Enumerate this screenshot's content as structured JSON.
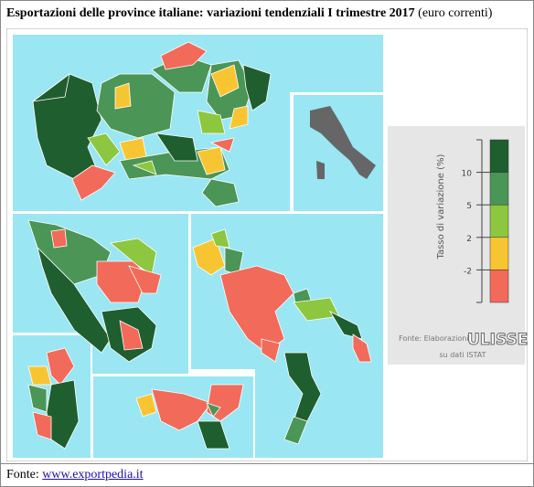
{
  "header": {
    "title": "Esportazioni delle province italiane: variazioni tendenziali I trimestre 2017",
    "subtitle": "(euro correnti)"
  },
  "legend": {
    "title": "Tasso di variazione (%)",
    "colors": [
      "#1f5e2f",
      "#4b9556",
      "#8dc63f",
      "#f8c532",
      "#f26a5a"
    ],
    "ticks": [
      10,
      5,
      2,
      -2
    ]
  },
  "credit": {
    "line1": "Fonte: Elaborazioni",
    "brand": "ULISSE",
    "line2": "su dati ISTAT"
  },
  "footer": {
    "label": "Fonte:",
    "link": "www.exportpedia.it"
  }
}
